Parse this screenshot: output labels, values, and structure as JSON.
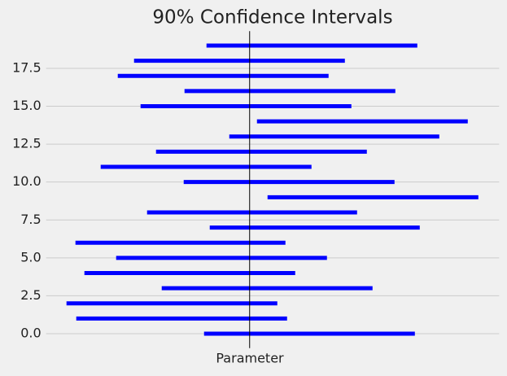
{
  "chart_data": {
    "type": "interval",
    "title": "90% Confidence Intervals",
    "xlabel": "Parameter",
    "color": "#0000ff",
    "parameter": 0,
    "y": [
      0,
      1,
      2,
      3,
      4,
      5,
      6,
      7,
      8,
      9,
      10,
      11,
      12,
      13,
      14,
      15,
      16,
      17,
      18,
      19
    ],
    "lower": [
      -1.12,
      -4.26,
      -4.5,
      -2.16,
      -4.06,
      -3.28,
      -4.28,
      -0.98,
      -2.52,
      0.44,
      -1.62,
      -3.66,
      -2.3,
      -0.5,
      0.18,
      -2.68,
      -1.6,
      -3.24,
      -2.84,
      -1.06
    ],
    "upper": [
      4.06,
      0.92,
      0.68,
      3.02,
      1.12,
      1.9,
      0.88,
      4.18,
      2.64,
      5.62,
      3.56,
      1.52,
      2.88,
      4.66,
      5.36,
      2.5,
      3.58,
      1.94,
      2.34,
      4.12
    ],
    "xlim": [
      -5.0,
      6.13
    ],
    "ylim": [
      -0.95,
      19.95
    ],
    "yticks": [
      {
        "value": 0,
        "label": "0.0"
      },
      2.5,
      {
        "value": 5,
        "label": "5.0"
      },
      7.5,
      {
        "value": 10,
        "label": "10.0"
      },
      12.5,
      {
        "value": 15,
        "label": "15.0"
      },
      17.5
    ],
    "grid": true
  }
}
